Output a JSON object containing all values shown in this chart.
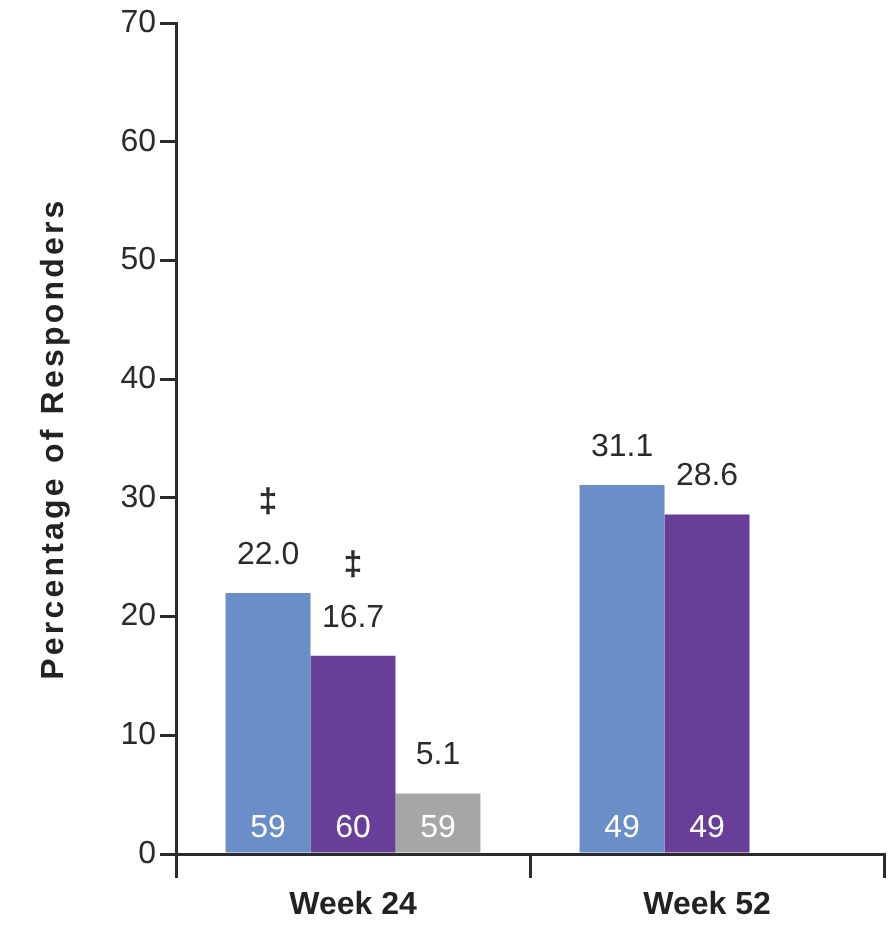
{
  "chart_data": {
    "type": "bar",
    "categories": [
      "Week 24",
      "Week 52"
    ],
    "series": [
      {
        "color": "#6a8fc8",
        "values": [
          22.0,
          31.1
        ],
        "value_labels": [
          "22.0",
          "31.1"
        ]
      },
      {
        "color": "#683f98",
        "values": [
          16.7,
          28.6
        ],
        "value_labels": [
          "16.7",
          "28.6"
        ]
      },
      {
        "color": "#a6a6a6",
        "values": [
          5.1,
          null
        ],
        "value_labels": [
          "5.1",
          null
        ]
      }
    ],
    "ylabel": "Percentage of Responders",
    "ylim": [
      0,
      70
    ],
    "yticks": [
      0,
      10,
      20,
      30,
      40,
      50,
      60,
      70
    ],
    "grid": false,
    "legend": false,
    "annotations": [
      "59",
      "60",
      "59",
      "49",
      "49",
      "‡",
      "‡"
    ]
  }
}
